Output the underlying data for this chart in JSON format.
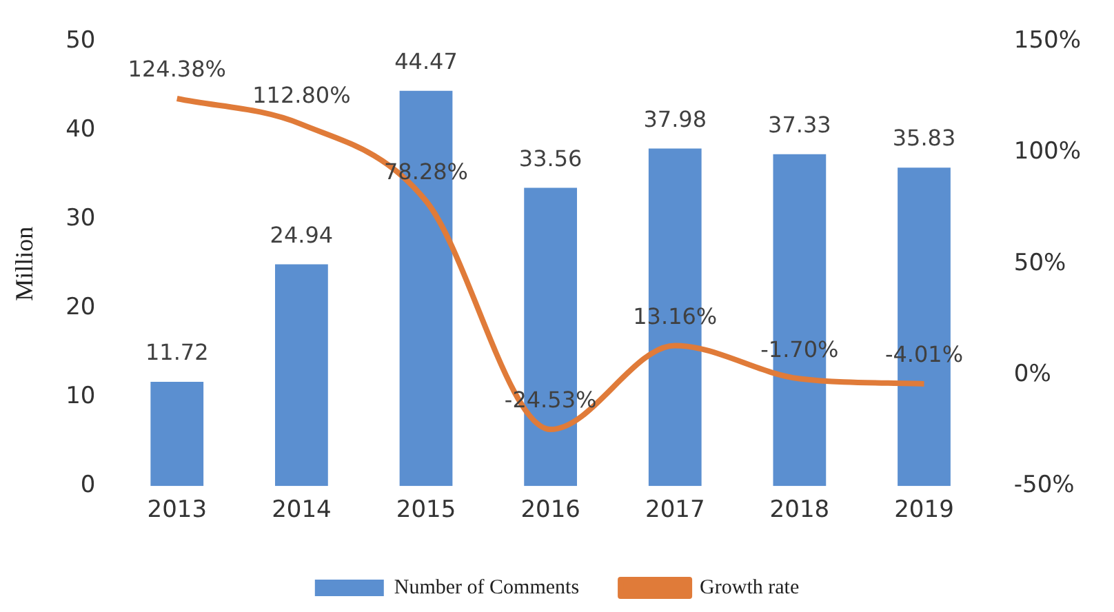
{
  "chart_data": {
    "type": "bar",
    "ylabel": "Million",
    "categories": [
      "2013",
      "2014",
      "2015",
      "2016",
      "2017",
      "2018",
      "2019"
    ],
    "series": [
      {
        "name": "Number of Comments",
        "color": "#5b8fd0",
        "values": [
          11.72,
          24.94,
          44.47,
          33.56,
          37.98,
          37.33,
          35.83
        ],
        "value_labels": [
          "11.72",
          "24.94",
          "44.47",
          "33.56",
          "37.98",
          "37.33",
          "35.83"
        ]
      },
      {
        "name": "Growth rate",
        "type": "line",
        "axis": "y2",
        "color": "#e07b39",
        "values": [
          124.38,
          112.8,
          78.28,
          -24.53,
          13.16,
          -1.7,
          -4.01
        ],
        "value_labels": [
          "124.38%",
          "112.80%",
          "78.28%",
          "-24.53%",
          "13.16%",
          "-1.70%",
          "-4.01%"
        ]
      }
    ],
    "ylim": [
      0,
      50
    ],
    "yticks": [
      0,
      10,
      20,
      30,
      40,
      50
    ],
    "y2lim": [
      -50,
      150
    ],
    "y2ticks": [
      {
        "value": -50,
        "label": "-50%"
      },
      {
        "value": 0,
        "label": "0%"
      },
      {
        "value": 50,
        "label": "50%"
      },
      {
        "value": 100,
        "label": "100%"
      },
      {
        "value": 150,
        "label": "150%"
      }
    ],
    "grid": false,
    "legend": "bottom",
    "marker": "none"
  }
}
